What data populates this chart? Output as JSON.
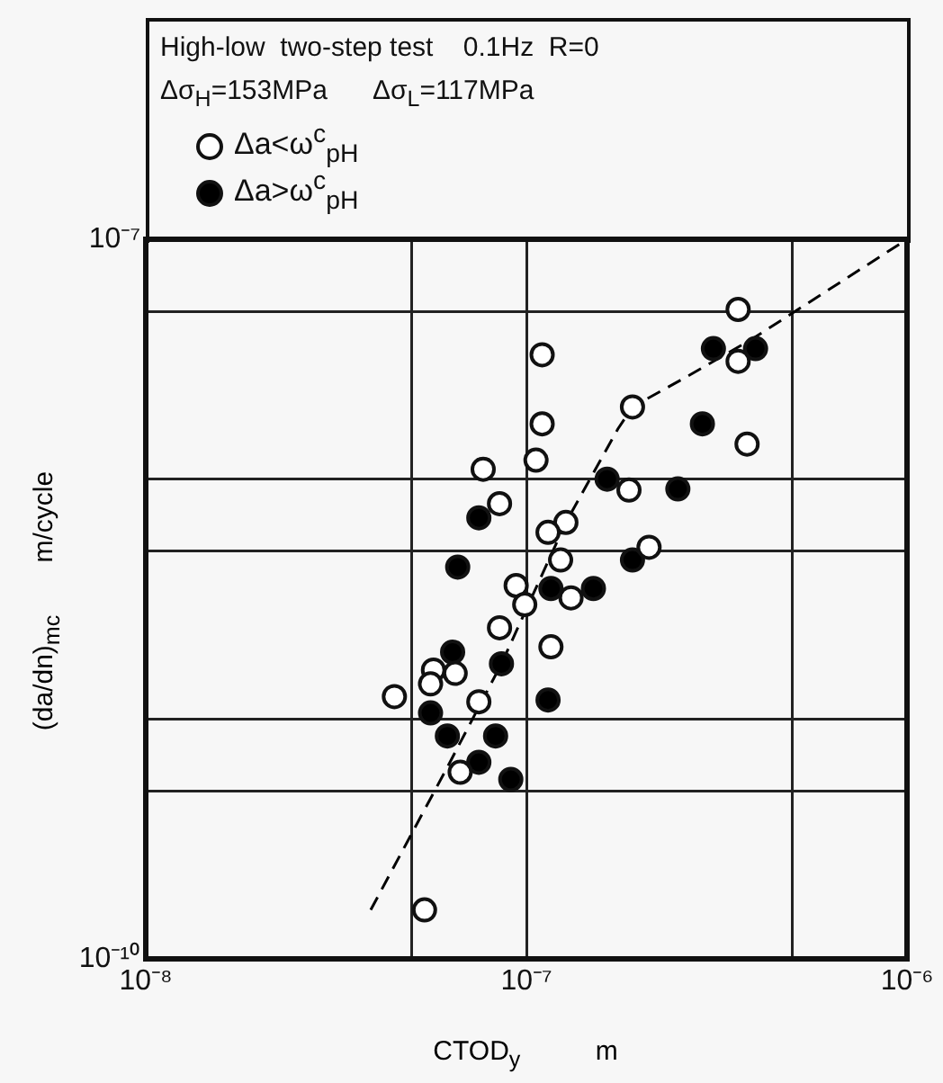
{
  "chart_data": {
    "type": "scatter",
    "title": "High-low  two-step test    0.1Hz  R=0",
    "subtitle": "Δσ$_{H}$=153MPa      Δσ$_{L}$=117MPa",
    "xlabel": "CTOD$_{y}$          m",
    "ylabel": "(da/dn)$_{mc}$       m/cycle",
    "log": "xy",
    "grid": true,
    "legend": "top left",
    "marker": "circle",
    "xlim": [
      1e-08,
      1e-06
    ],
    "xticks": [
      {
        "value": 1e-08,
        "label": "10⁻⁸"
      },
      {
        "value": 5e-08,
        "label": null
      },
      {
        "value": 1e-07,
        "label": "10⁻⁷"
      },
      {
        "value": 5e-07,
        "label": null
      },
      {
        "value": 1e-06,
        "label": "10⁻⁶"
      }
    ],
    "ylim": [
      1e-10,
      1e-07
    ],
    "yticks": [
      {
        "value": 1e-10,
        "label": "10⁻¹⁰"
      },
      {
        "value": 5e-10,
        "label": null
      },
      {
        "value": 1e-09,
        "label": null
      },
      {
        "value": 5e-09,
        "label": null
      },
      {
        "value": 1e-08,
        "label": null
      },
      {
        "value": 5e-08,
        "label": null
      },
      {
        "value": 1e-07,
        "label": "10⁻⁷"
      }
    ],
    "series": [
      {
        "name": "Δa<ω$^{c}$$_{pH}$",
        "color": "#ffffff",
        "x": [
          3.6e-07,
          3.6e-07,
          3.8e-07,
          1.9e-07,
          1.1e-07,
          1.1e-07,
          1.06e-07,
          7.7e-08,
          8.5e-08,
          1.86e-07,
          1.27e-07,
          1.14e-07,
          2.1e-07,
          1.23e-07,
          9.4e-08,
          9.9e-08,
          1.31e-07,
          8.5e-08,
          1.16e-07,
          5.7e-08,
          6.5e-08,
          5.6e-08,
          4.5e-08,
          7.5e-08,
          6.7e-08,
          5.4e-08
        ],
        "values": [
          5.1e-08,
          3.1e-08,
          1.4e-08,
          2e-08,
          3.3e-08,
          1.7e-08,
          1.2e-08,
          1.1e-08,
          7.9e-09,
          9e-09,
          6.6e-09,
          6e-09,
          5.2e-09,
          4.6e-09,
          3.6e-09,
          3e-09,
          3.2e-09,
          2.4e-09,
          2e-09,
          1.6e-09,
          1.55e-09,
          1.4e-09,
          1.24e-09,
          1.18e-09,
          6e-10,
          1.6e-10
        ]
      },
      {
        "name": "Δa>ω$^{c}$$_{pH}$",
        "color": "#000000",
        "x": [
          3.1e-07,
          4e-07,
          2.9e-07,
          1.63e-07,
          2.5e-07,
          7.5e-08,
          1.9e-07,
          6.6e-08,
          1.16e-07,
          1.5e-07,
          6.4e-08,
          8.6e-08,
          1.14e-07,
          5.6e-08,
          6.2e-08,
          8.3e-08,
          7.5e-08,
          9.1e-08
        ],
        "values": [
          3.5e-08,
          3.5e-08,
          1.7e-08,
          1e-08,
          9.1e-09,
          6.9e-09,
          4.6e-09,
          4.3e-09,
          3.5e-09,
          3.5e-09,
          1.9e-09,
          1.7e-09,
          1.2e-09,
          1.06e-09,
          8.5e-10,
          8.5e-10,
          6.6e-10,
          5.6e-10
        ]
      },
      {
        "type": "line",
        "color": "#000000",
        "line_style": "dashed",
        "marker": "none",
        "x": [
          3.9e-08,
          6.2e-08,
          8.6e-08,
          1.27e-07,
          1.74e-07,
          1.9e-07,
          2.69e-07,
          3.93e-07,
          1e-06
        ],
        "values": [
          1.6e-10,
          6.3e-10,
          1.7e-09,
          6.6e-09,
          1.62e-08,
          2e-08,
          2.72e-08,
          3.85e-08,
          1e-07
        ]
      }
    ]
  }
}
